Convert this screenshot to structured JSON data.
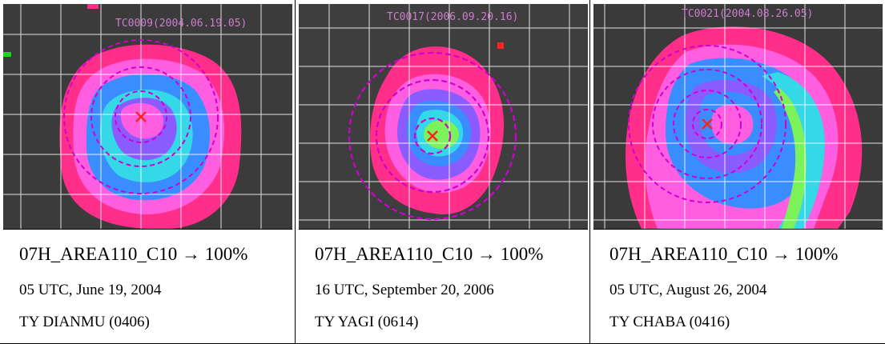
{
  "panels": [
    {
      "id": "dianmu",
      "image_label": "TC0009(2004.06.19.05)",
      "title": "07H_AREA110_C10 → 100%",
      "time": "05 UTC, June 19, 2004",
      "name": "TY DIANMU (0406)"
    },
    {
      "id": "yagi",
      "image_label": "TC0017(2006.09.20.16)",
      "title": "07H_AREA110_C10 → 100%",
      "time": "16 UTC, September 20, 2006",
      "name": "TY YAGI (0614)"
    },
    {
      "id": "chaba",
      "image_label": "TC0021(2004.08.26.05)",
      "title": "07H_AREA110_C10 → 100%",
      "time": "05 UTC, August 26, 2004",
      "name": "TY CHABA (0416)"
    }
  ],
  "colors": {
    "outer_band": "#ff2e8a",
    "band_magenta": "#ff5ee0",
    "band_violet": "#8a5cff",
    "band_blue": "#3a8dff",
    "band_cyan": "#34d8e6",
    "band_green": "#7cf25a",
    "center_marker": "#ff2020",
    "range_circle": "#d000d0",
    "grid_line": "#ffffff",
    "background": "#3c3c3c"
  }
}
